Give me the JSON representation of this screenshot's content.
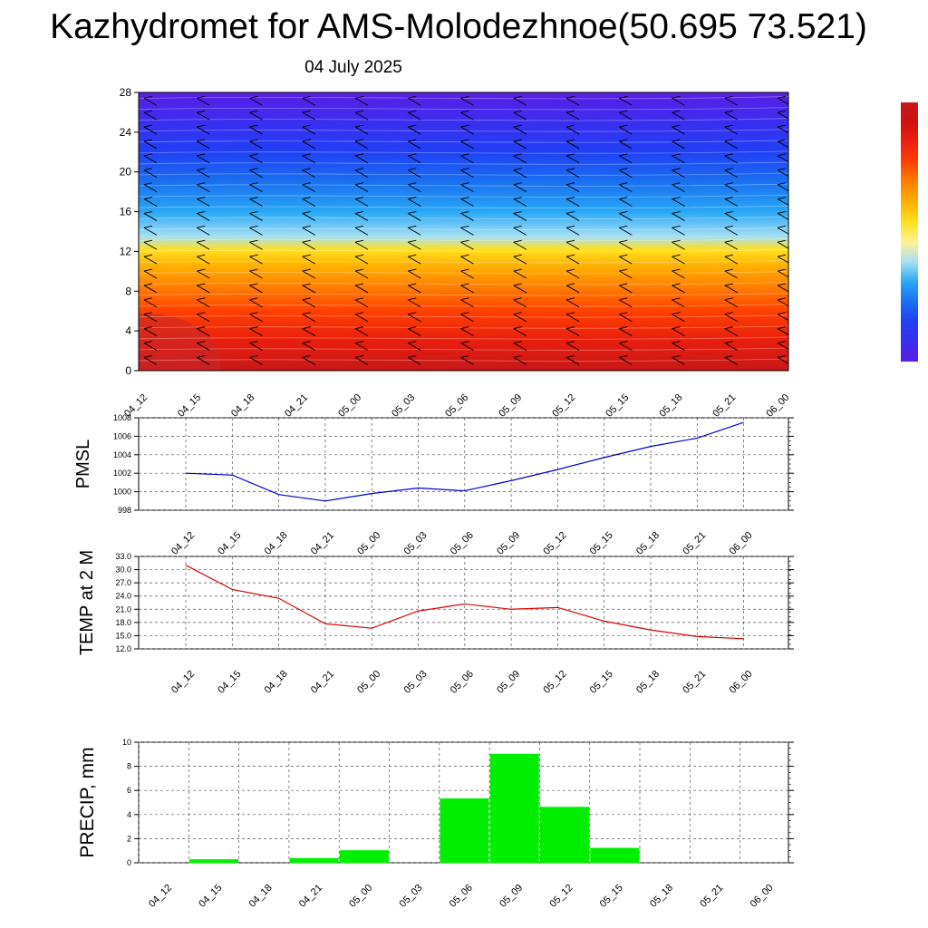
{
  "header": {
    "title": "Kazhydromet for AMS-Molodezhnoe(50.695 73.521)",
    "date": "04 July 2025"
  },
  "time_labels": [
    "04_12",
    "04_15",
    "04_18",
    "04_21",
    "05_00",
    "05_03",
    "05_06",
    "05_09",
    "05_12",
    "05_15",
    "05_18",
    "05_21",
    "06_00"
  ],
  "colors": {
    "pmsl_line": "#0000cc",
    "temp_line": "#dd0000",
    "precip_bar": "#00ee00",
    "colorbar": [
      "#5a1ee6",
      "#3a2ef0",
      "#2040f5",
      "#1a70f0",
      "#28a8f5",
      "#a8e0f5",
      "#fff090",
      "#ffe020",
      "#ffb000",
      "#ff8000",
      "#ff4000",
      "#f02010",
      "#d01010",
      "#c81818"
    ]
  },
  "chart_data": [
    {
      "type": "heatmap",
      "title": "",
      "xlabel": "",
      "ylabel": "",
      "ylim": [
        0,
        28
      ],
      "yticks": [
        "0",
        "4",
        "8",
        "12",
        "16",
        "20",
        "24",
        "28"
      ],
      "categories": [
        "04_12",
        "04_15",
        "04_18",
        "04_21",
        "05_00",
        "05_03",
        "05_06",
        "05_09",
        "05_12",
        "05_15",
        "05_18",
        "05_21",
        "06_00"
      ],
      "color_bands": [
        {
          "level": 0,
          "color": "#c81818"
        },
        {
          "level": 3,
          "color": "#e81e0e"
        },
        {
          "level": 6,
          "color": "#ff4000"
        },
        {
          "level": 8.5,
          "color": "#ff8000"
        },
        {
          "level": 10.5,
          "color": "#ffb000"
        },
        {
          "level": 12.2,
          "color": "#ffe020"
        },
        {
          "level": 13.5,
          "color": "#a8e0f5"
        },
        {
          "level": 16,
          "color": "#28a8f5"
        },
        {
          "level": 19,
          "color": "#1a70f0"
        },
        {
          "level": 22,
          "color": "#2040f5"
        },
        {
          "level": 25,
          "color": "#3a2ef0"
        },
        {
          "level": 28,
          "color": "#5a1ee6"
        }
      ],
      "grid": false,
      "legend": "right colorbar"
    },
    {
      "type": "line",
      "ylabel": "PMSL",
      "ylim": [
        998,
        1008
      ],
      "yticks": [
        "998",
        "1000",
        "1002",
        "1004",
        "1006",
        "1008"
      ],
      "x": [
        "04_12",
        "04_15",
        "04_18",
        "04_21",
        "05_00",
        "05_03",
        "05_06",
        "05_09",
        "05_12",
        "05_15",
        "05_18",
        "05_21",
        "06_00"
      ],
      "series": [
        {
          "values": [
            1002.0,
            1001.8,
            999.7,
            999.0,
            999.8,
            1000.4,
            1000.1,
            1001.2,
            1002.4,
            1003.7,
            1004.9,
            1005.8,
            1007.5
          ]
        }
      ],
      "grid": true
    },
    {
      "type": "line",
      "ylabel": "TEMP at 2 M",
      "ylim": [
        12.0,
        33.0
      ],
      "yticks": [
        "12.0",
        "15.0",
        "18.0",
        "21.0",
        "24.0",
        "27.0",
        "30.0",
        "33.0"
      ],
      "x": [
        "04_12",
        "04_15",
        "04_18",
        "04_21",
        "05_00",
        "05_03",
        "05_06",
        "05_09",
        "05_12",
        "05_15",
        "05_18",
        "05_21",
        "06_00"
      ],
      "series": [
        {
          "values": [
            31.0,
            25.5,
            23.5,
            17.7,
            16.7,
            20.6,
            22.2,
            21.0,
            21.4,
            18.3,
            16.3,
            14.8,
            14.3
          ]
        }
      ],
      "grid": true
    },
    {
      "type": "bar",
      "ylabel": "PRECIP, mm",
      "ylim": [
        0,
        10
      ],
      "yticks": [
        "0",
        "2",
        "4",
        "6",
        "8",
        "10"
      ],
      "categories": [
        "04_12",
        "04_15",
        "04_18",
        "04_21",
        "05_00",
        "05_03",
        "05_06",
        "05_09",
        "05_12",
        "05_15",
        "05_18",
        "05_21",
        "06_00"
      ],
      "values": [
        0,
        0.25,
        0,
        0.35,
        1.0,
        0,
        5.3,
        9.0,
        4.6,
        1.2,
        0,
        0,
        0
      ],
      "grid": true
    }
  ]
}
